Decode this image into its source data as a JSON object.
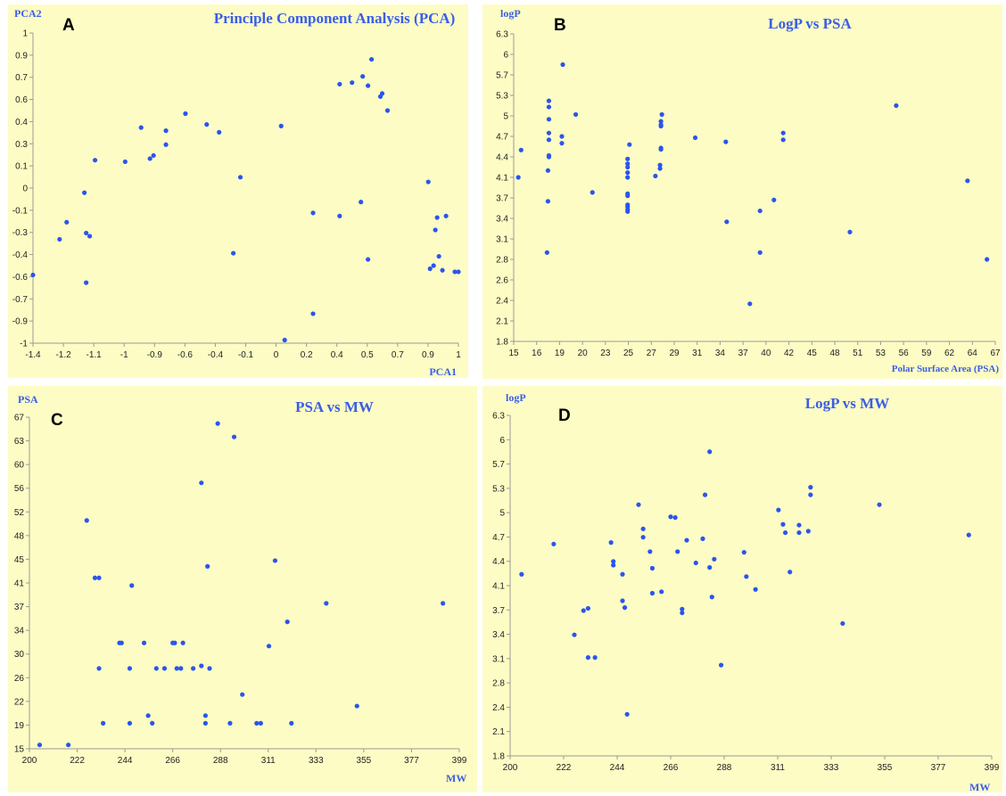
{
  "colors": {
    "point": "#2a55ef",
    "title": "#3a5ee8",
    "background": "#fdfcc4"
  },
  "chart_data": [
    {
      "panel": "A",
      "type": "scatter",
      "title": "Principle Component Analysis (PCA)",
      "xlabel": "PCA1",
      "ylabel": "PCA2",
      "xlim": [
        -1.4,
        1
      ],
      "ylim": [
        -1,
        1
      ],
      "xticks": [
        "-1.4",
        "-1.2",
        "-1.1",
        "-1",
        "-0.9",
        "-0.6",
        "-0.4",
        "-0.1",
        "0",
        "0.2",
        "0.4",
        "0.5",
        "0.7",
        "0.9",
        "1"
      ],
      "yticks": [
        "-1",
        "-0.9",
        "-0.7",
        "-0.6",
        "-0.4",
        "-0.3",
        "-0.1",
        "0",
        "0.1",
        "0.3",
        "0.4",
        "0.6",
        "0.7",
        "0.9",
        "1"
      ],
      "points": [
        [
          -1.4,
          -0.56
        ],
        [
          -1.25,
          -0.33
        ],
        [
          -1.21,
          -0.22
        ],
        [
          -1.11,
          -0.03
        ],
        [
          -1.1,
          -0.29
        ],
        [
          -1.1,
          -0.61
        ],
        [
          -1.08,
          -0.31
        ],
        [
          -1.05,
          0.18
        ],
        [
          -0.88,
          0.17
        ],
        [
          -0.79,
          0.39
        ],
        [
          -0.74,
          0.19
        ],
        [
          -0.72,
          0.21
        ],
        [
          -0.65,
          0.28
        ],
        [
          -0.65,
          0.37
        ],
        [
          -0.54,
          0.48
        ],
        [
          -0.42,
          0.41
        ],
        [
          -0.35,
          0.36
        ],
        [
          -0.27,
          -0.42
        ],
        [
          -0.23,
          0.07
        ],
        [
          0.0,
          0.4
        ],
        [
          0.02,
          -0.98
        ],
        [
          0.18,
          -0.81
        ],
        [
          0.18,
          -0.16
        ],
        [
          0.33,
          -0.18
        ],
        [
          0.33,
          0.67
        ],
        [
          0.4,
          0.68
        ],
        [
          0.45,
          -0.09
        ],
        [
          0.46,
          0.72
        ],
        [
          0.49,
          -0.46
        ],
        [
          0.49,
          0.66
        ],
        [
          0.51,
          0.83
        ],
        [
          0.56,
          0.59
        ],
        [
          0.57,
          0.61
        ],
        [
          0.6,
          0.5
        ],
        [
          0.83,
          0.04
        ],
        [
          0.84,
          -0.52
        ],
        [
          0.86,
          -0.5
        ],
        [
          0.87,
          -0.27
        ],
        [
          0.88,
          -0.19
        ],
        [
          0.89,
          -0.44
        ],
        [
          0.91,
          -0.53
        ],
        [
          0.93,
          -0.18
        ],
        [
          0.98,
          -0.54
        ],
        [
          1.0,
          -0.54
        ]
      ]
    },
    {
      "panel": "B",
      "type": "scatter",
      "title": "LogP vs PSA",
      "xlabel": "Polar Surface Area (PSA)",
      "ylabel": "logP",
      "xlim": [
        15,
        67
      ],
      "ylim": [
        1.8,
        6.3
      ],
      "xticks": [
        "15",
        "16",
        "19",
        "20",
        "23",
        "25",
        "27",
        "29",
        "31",
        "34",
        "37",
        "40",
        "42",
        "45",
        "48",
        "51",
        "53",
        "56",
        "59",
        "62",
        "64",
        "67"
      ],
      "yticks": [
        "1.8",
        "2.1",
        "2.4",
        "2.6",
        "2.8",
        "3.1",
        "3.4",
        "3.7",
        "4.1",
        "4.4",
        "4.7",
        "5",
        "5.3",
        "5.7",
        "6",
        "6.3"
      ],
      "points": [
        [
          15.5,
          4.2
        ],
        [
          15.8,
          4.6
        ],
        [
          18.6,
          3.1
        ],
        [
          18.7,
          3.85
        ],
        [
          18.7,
          4.3
        ],
        [
          18.8,
          4.5
        ],
        [
          18.8,
          4.52
        ],
        [
          18.8,
          4.75
        ],
        [
          18.8,
          4.85
        ],
        [
          18.8,
          5.05
        ],
        [
          18.8,
          5.23
        ],
        [
          18.8,
          5.32
        ],
        [
          20.2,
          4.7
        ],
        [
          20.2,
          4.8
        ],
        [
          20.3,
          5.85
        ],
        [
          21.7,
          5.12
        ],
        [
          23.5,
          3.98
        ],
        [
          27.3,
          3.7
        ],
        [
          27.3,
          3.73
        ],
        [
          27.3,
          3.77
        ],
        [
          27.3,
          3.8
        ],
        [
          27.3,
          3.93
        ],
        [
          27.3,
          3.96
        ],
        [
          27.3,
          4.2
        ],
        [
          27.3,
          4.27
        ],
        [
          27.3,
          4.35
        ],
        [
          27.3,
          4.4
        ],
        [
          27.3,
          4.47
        ],
        [
          27.5,
          4.68
        ],
        [
          30.3,
          4.22
        ],
        [
          30.8,
          4.33
        ],
        [
          30.8,
          4.38
        ],
        [
          30.9,
          4.61
        ],
        [
          30.9,
          4.63
        ],
        [
          30.9,
          4.95
        ],
        [
          30.9,
          4.97
        ],
        [
          30.9,
          5.02
        ],
        [
          31.0,
          5.12
        ],
        [
          34.6,
          4.78
        ],
        [
          37.9,
          4.72
        ],
        [
          38.0,
          3.55
        ],
        [
          40.5,
          2.35
        ],
        [
          41.6,
          3.1
        ],
        [
          41.6,
          3.71
        ],
        [
          43.1,
          3.87
        ],
        [
          44.1,
          4.75
        ],
        [
          44.1,
          4.85
        ],
        [
          51.3,
          3.4
        ],
        [
          56.3,
          5.25
        ],
        [
          64.0,
          4.15
        ],
        [
          66.1,
          3.0
        ]
      ]
    },
    {
      "panel": "C",
      "type": "scatter",
      "title": "PSA vs MW",
      "xlabel": "MW",
      "ylabel": "PSA",
      "xlim": [
        200,
        410
      ],
      "ylim": [
        15,
        67
      ],
      "xticks": [
        "200",
        "222",
        "244",
        "266",
        "288",
        "311",
        "333",
        "355",
        "377",
        "399"
      ],
      "yticks": [
        "15",
        "19",
        "22",
        "26",
        "30",
        "34",
        "37",
        "41",
        "45",
        "48",
        "52",
        "56",
        "60",
        "63",
        "67"
      ],
      "points": [
        [
          205,
          15.6
        ],
        [
          219,
          15.6
        ],
        [
          228,
          50.8
        ],
        [
          232,
          41.8
        ],
        [
          234,
          27.6
        ],
        [
          234,
          41.8
        ],
        [
          236,
          19.0
        ],
        [
          244,
          31.6
        ],
        [
          245,
          31.6
        ],
        [
          249,
          19.0
        ],
        [
          249,
          27.6
        ],
        [
          250,
          40.6
        ],
        [
          256,
          31.6
        ],
        [
          258,
          20.2
        ],
        [
          260,
          19.0
        ],
        [
          262,
          27.6
        ],
        [
          266,
          27.6
        ],
        [
          270,
          31.6
        ],
        [
          271,
          31.6
        ],
        [
          272,
          27.6
        ],
        [
          274,
          27.6
        ],
        [
          275,
          31.6
        ],
        [
          280,
          27.6
        ],
        [
          284,
          28.0
        ],
        [
          284,
          56.7
        ],
        [
          286,
          20.2
        ],
        [
          286,
          19.0
        ],
        [
          287,
          43.6
        ],
        [
          288,
          27.6
        ],
        [
          292,
          66.0
        ],
        [
          298,
          19.0
        ],
        [
          300,
          63.9
        ],
        [
          304,
          23.5
        ],
        [
          311,
          19.0
        ],
        [
          313,
          19.0
        ],
        [
          317,
          31.1
        ],
        [
          320,
          44.5
        ],
        [
          326,
          34.9
        ],
        [
          328,
          19.0
        ],
        [
          345,
          37.8
        ],
        [
          360,
          21.7
        ],
        [
          402,
          37.8
        ]
      ]
    },
    {
      "panel": "D",
      "type": "scatter",
      "title": "LogP vs MW",
      "xlabel": "MW",
      "ylabel": "logP",
      "xlim": [
        200,
        410
      ],
      "ylim": [
        1.8,
        6.3
      ],
      "xticks": [
        "200",
        "222",
        "244",
        "266",
        "288",
        "311",
        "333",
        "355",
        "377",
        "399"
      ],
      "yticks": [
        "1.8",
        "2.1",
        "2.4",
        "2.8",
        "3.1",
        "3.4",
        "3.7",
        "4.1",
        "4.4",
        "4.7",
        "5",
        "5.3",
        "5.7",
        "6",
        "6.3"
      ],
      "points": [
        [
          205,
          4.2
        ],
        [
          219,
          4.6
        ],
        [
          228,
          3.4
        ],
        [
          232,
          3.72
        ],
        [
          234,
          3.75
        ],
        [
          234,
          3.1
        ],
        [
          237,
          3.1
        ],
        [
          244,
          4.62
        ],
        [
          245,
          4.37
        ],
        [
          245,
          4.32
        ],
        [
          249,
          4.2
        ],
        [
          249,
          3.85
        ],
        [
          250,
          3.76
        ],
        [
          251,
          2.35
        ],
        [
          256,
          5.12
        ],
        [
          258,
          4.8
        ],
        [
          258,
          4.69
        ],
        [
          261,
          4.5
        ],
        [
          262,
          4.28
        ],
        [
          262,
          3.95
        ],
        [
          266,
          3.97
        ],
        [
          270,
          4.96
        ],
        [
          272,
          4.95
        ],
        [
          273,
          4.5
        ],
        [
          275,
          3.74
        ],
        [
          275,
          3.69
        ],
        [
          277,
          4.65
        ],
        [
          281,
          4.35
        ],
        [
          284,
          4.67
        ],
        [
          285,
          5.25
        ],
        [
          287,
          5.82
        ],
        [
          287,
          4.29
        ],
        [
          289,
          4.4
        ],
        [
          288,
          3.9
        ],
        [
          292,
          3.0
        ],
        [
          302,
          4.49
        ],
        [
          303,
          4.17
        ],
        [
          307,
          4.0
        ],
        [
          317,
          5.05
        ],
        [
          319,
          4.86
        ],
        [
          320,
          4.75
        ],
        [
          322,
          4.23
        ],
        [
          326,
          4.75
        ],
        [
          326,
          4.85
        ],
        [
          330,
          4.77
        ],
        [
          331,
          5.25
        ],
        [
          331,
          5.35
        ],
        [
          345,
          3.55
        ],
        [
          361,
          5.12
        ],
        [
          400,
          4.72
        ]
      ]
    }
  ]
}
